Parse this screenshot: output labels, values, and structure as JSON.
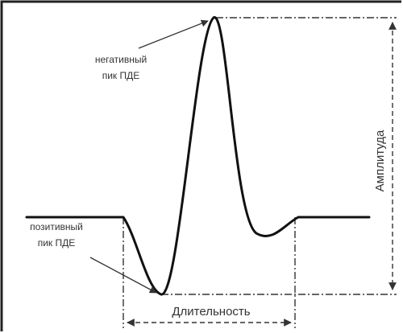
{
  "labels": {
    "negative_peak_line1": "негативный",
    "negative_peak_line2": "пик ПДЕ",
    "positive_peak_line1": "позитивный",
    "positive_peak_line2": "пик ПДЕ",
    "amplitude": "Амплитуда",
    "duration": "Длительность"
  },
  "colors": {
    "curve": "#111111",
    "dash_lines": "#333333",
    "text": "#333333",
    "frame": "#222222"
  }
}
